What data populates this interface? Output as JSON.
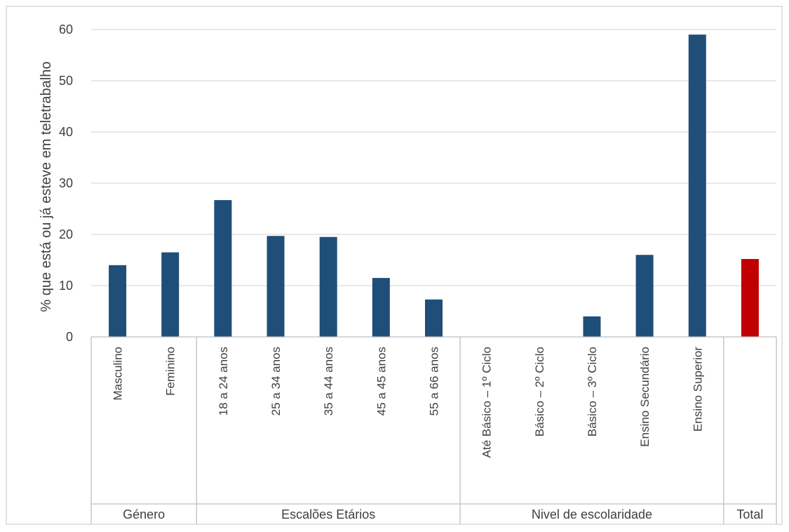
{
  "chart_data": {
    "type": "bar",
    "ylabel": "% que está ou já esteve em teletrabalho",
    "xlabel": "",
    "ylim": [
      0,
      60
    ],
    "yticks": [
      0,
      10,
      20,
      30,
      40,
      50,
      60
    ],
    "grid": true,
    "colors": {
      "series": "#1f4e79",
      "total": "#c00000",
      "grid": "#d9d9d9",
      "axis": "#bfbfbf"
    },
    "groups": [
      {
        "name": "Género",
        "categories": [
          "Masculino",
          "Feminino"
        ]
      },
      {
        "name": "Escalões Etários",
        "categories": [
          "18 a 24 anos",
          "25 a 34 anos",
          "35 a 44 anos",
          "45 a 45 anos",
          "55 a 66 anos"
        ]
      },
      {
        "name": "Nivel de escolaridade",
        "categories": [
          "Até Básico – 1º Ciclo",
          "Básico – 2º Ciclo",
          "Básico – 3º Ciclo",
          "Ensino Secundário",
          "Ensino Superior"
        ]
      },
      {
        "name": "Total",
        "categories": [
          ""
        ]
      }
    ],
    "categories": [
      "Masculino",
      "Feminino",
      "18 a 24 anos",
      "25 a 34 anos",
      "35 a 44 anos",
      "45 a 45 anos",
      "55 a 66 anos",
      "Até Básico – 1º Ciclo",
      "Básico – 2º Ciclo",
      "Básico – 3º Ciclo",
      "Ensino Secundário",
      "Ensino Superior",
      ""
    ],
    "values": [
      14.0,
      16.5,
      26.7,
      19.7,
      19.5,
      11.5,
      7.3,
      0,
      0,
      4.0,
      16.0,
      59.0,
      15.2
    ],
    "highlight_index": 12
  }
}
